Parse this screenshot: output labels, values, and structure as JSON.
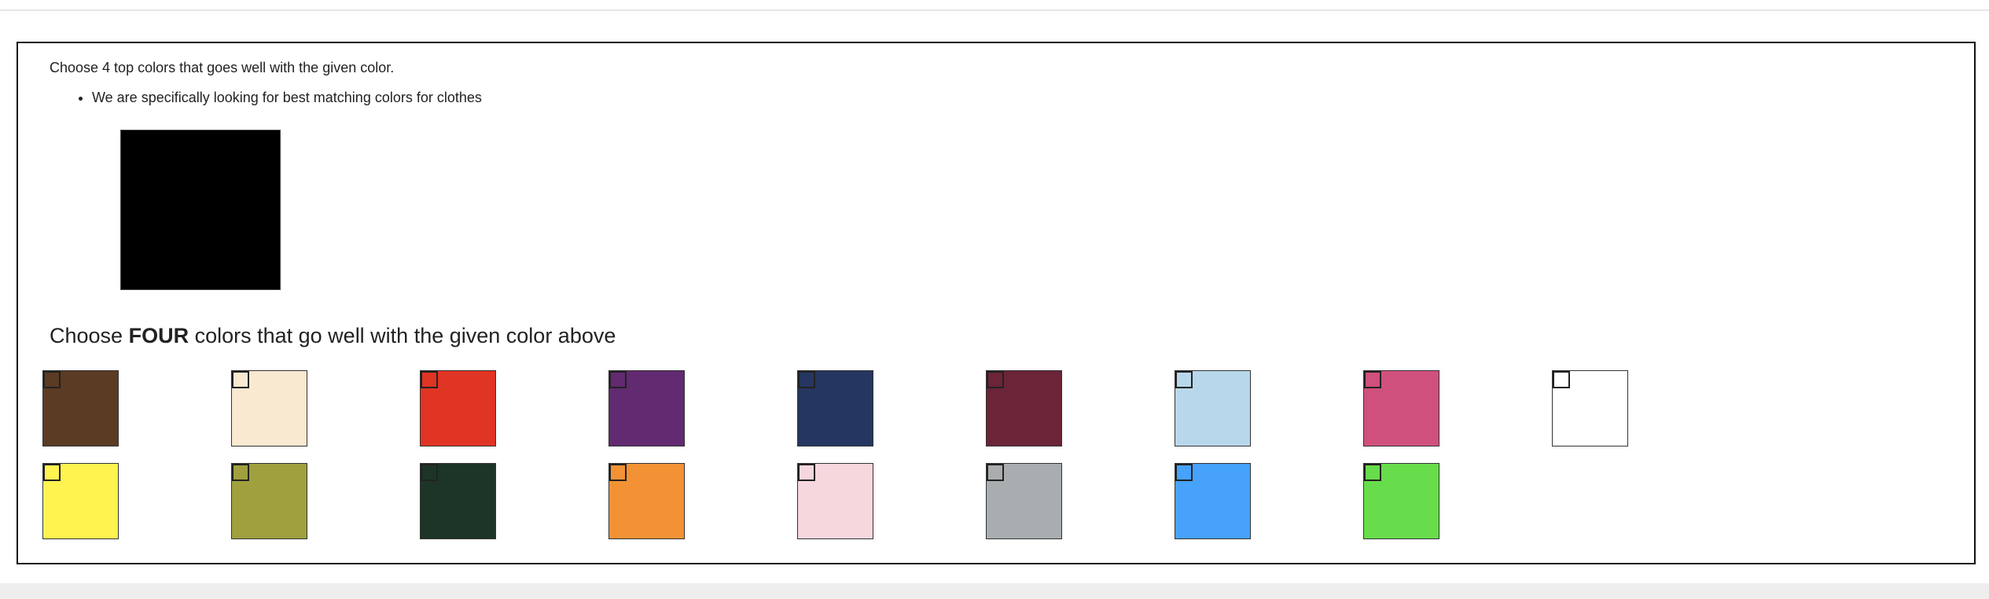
{
  "task": {
    "instruction": "Choose 4 top colors that goes well with the given color.",
    "bullets": [
      "We are specifically looking for best matching colors for clothes"
    ],
    "given_color": "#000000"
  },
  "question": {
    "prefix": "Choose ",
    "emphasis": "FOUR",
    "suffix": " colors that go well with the given color above"
  },
  "options": [
    {
      "color": "#5b3b24",
      "checked": false
    },
    {
      "color": "#f9e9d1",
      "checked": false
    },
    {
      "color": "#e03424",
      "checked": false
    },
    {
      "color": "#622a70",
      "checked": false
    },
    {
      "color": "#253660",
      "checked": false
    },
    {
      "color": "#6b2438",
      "checked": false
    },
    {
      "color": "#b9d7eb",
      "checked": false
    },
    {
      "color": "#d0507d",
      "checked": false
    },
    {
      "color": "#ffffff",
      "checked": false
    },
    {
      "color": "#fff350",
      "checked": false
    },
    {
      "color": "#a0a03f",
      "checked": false
    },
    {
      "color": "#1c3526",
      "checked": false
    },
    {
      "color": "#f29235",
      "checked": false
    },
    {
      "color": "#f7d7de",
      "checked": false
    },
    {
      "color": "#a9adb0",
      "checked": false
    },
    {
      "color": "#46a2fb",
      "checked": false
    },
    {
      "color": "#68dd4b",
      "checked": false
    }
  ]
}
